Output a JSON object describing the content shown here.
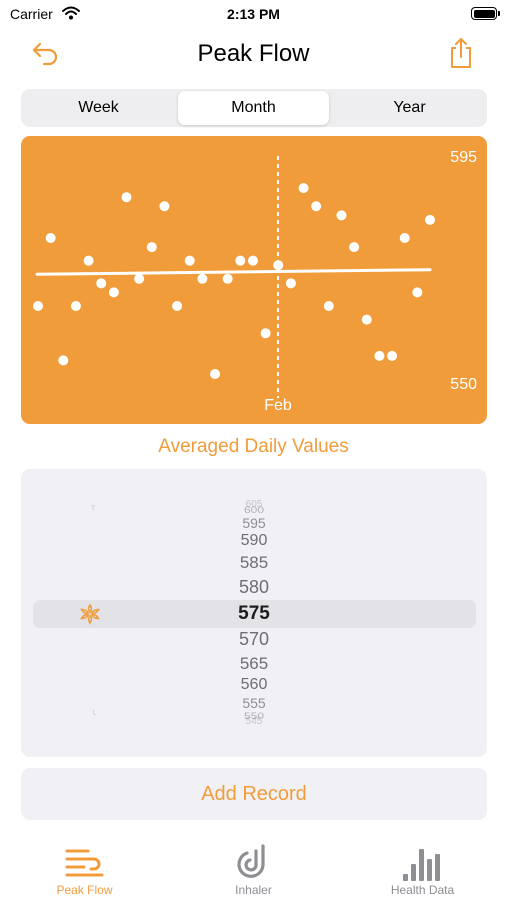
{
  "status_bar": {
    "carrier": "Carrier",
    "time": "2:13 PM"
  },
  "nav": {
    "title": "Peak Flow",
    "back_icon": "undo-arrow-icon",
    "share_icon": "share-icon"
  },
  "segments": [
    {
      "label": "Week",
      "selected": false
    },
    {
      "label": "Month",
      "selected": true
    },
    {
      "label": "Year",
      "selected": false
    }
  ],
  "chart_data": {
    "type": "scatter",
    "y_max_label": "595",
    "y_min_label": "550",
    "ylim": [
      550,
      595
    ],
    "marker_label": "Feb",
    "marker_day": 19,
    "x_days": 31,
    "trendline": {
      "start": 572,
      "end": 573
    },
    "points": [
      {
        "day": 1,
        "value": 565
      },
      {
        "day": 2,
        "value": 580
      },
      {
        "day": 3,
        "value": 553
      },
      {
        "day": 4,
        "value": 565
      },
      {
        "day": 5,
        "value": 575
      },
      {
        "day": 6,
        "value": 570
      },
      {
        "day": 7,
        "value": 568
      },
      {
        "day": 8,
        "value": 589
      },
      {
        "day": 9,
        "value": 571
      },
      {
        "day": 10,
        "value": 578
      },
      {
        "day": 11,
        "value": 587
      },
      {
        "day": 12,
        "value": 565
      },
      {
        "day": 13,
        "value": 575
      },
      {
        "day": 14,
        "value": 571
      },
      {
        "day": 15,
        "value": 550
      },
      {
        "day": 16,
        "value": 571
      },
      {
        "day": 17,
        "value": 575
      },
      {
        "day": 18,
        "value": 575
      },
      {
        "day": 19,
        "value": 559
      },
      {
        "day": 20,
        "value": 574
      },
      {
        "day": 21,
        "value": 570
      },
      {
        "day": 22,
        "value": 591
      },
      {
        "day": 23,
        "value": 587
      },
      {
        "day": 24,
        "value": 565
      },
      {
        "day": 25,
        "value": 585
      },
      {
        "day": 26,
        "value": 578
      },
      {
        "day": 27,
        "value": 562
      },
      {
        "day": 28,
        "value": 554
      },
      {
        "day": 29,
        "value": 554
      },
      {
        "day": 30,
        "value": 580
      },
      {
        "day": 31,
        "value": 568
      },
      {
        "day": 32,
        "value": 584
      }
    ],
    "point_color": "#ffffff",
    "background_color": "#f19c3a"
  },
  "chart_caption": "Averaged Daily Values",
  "picker": {
    "values": [
      "605",
      "600",
      "595",
      "590",
      "585",
      "580",
      "575",
      "570",
      "565",
      "560",
      "555",
      "550",
      "545"
    ],
    "selected": "575",
    "selected_icon": "asterisk-icon"
  },
  "add_button": {
    "label": "Add Record"
  },
  "tabs": [
    {
      "label": "Peak Flow",
      "icon": "wind-icon",
      "active": true
    },
    {
      "label": "Inhaler",
      "icon": "inhaler-icon",
      "active": false
    },
    {
      "label": "Health Data",
      "icon": "bar-chart-icon",
      "active": false
    }
  ],
  "colors": {
    "accent": "#f19c3a",
    "panel": "#f1f1f5"
  }
}
